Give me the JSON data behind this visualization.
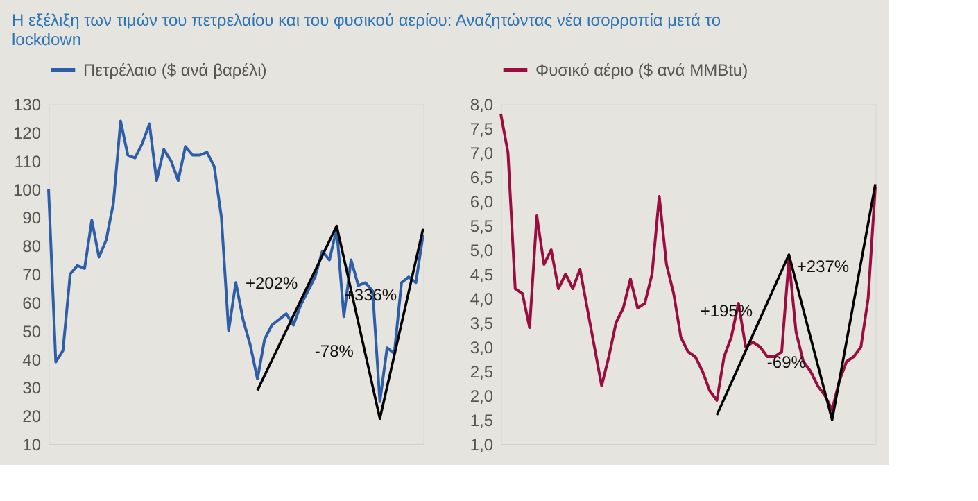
{
  "chart_data": [
    {
      "type": "line",
      "title": "Η εξέλιξη των τιμών του πετρελαίου και του φυσικού αερίου: Αναζητώντας νέα ισορροπία μετά το lockdown",
      "categories": [
        null,
        null,
        null,
        null,
        null,
        null,
        null,
        null,
        null,
        null,
        null,
        null,
        null,
        null,
        null,
        null,
        null,
        null,
        null,
        null,
        null,
        null,
        null,
        null,
        null,
        null,
        null,
        null,
        null,
        null,
        null,
        null,
        null,
        null,
        null,
        null,
        null,
        null,
        null,
        null,
        null,
        null,
        null,
        null,
        null,
        null,
        null,
        null,
        null,
        null,
        null,
        null,
        null
      ],
      "ylim": [
        10,
        130
      ],
      "yticks": [
        10,
        20,
        30,
        40,
        50,
        60,
        70,
        80,
        90,
        100,
        110,
        120,
        130
      ],
      "legend": "top",
      "marker": "none",
      "line_style": "solid",
      "series": [
        {
          "name": "Πετρέλαιο ($ ανά βαρέλι)",
          "color": "#2e5ea8",
          "values": [
            100,
            39,
            43,
            70,
            73,
            72,
            89,
            76,
            82,
            95,
            124,
            112,
            111,
            116,
            123,
            103,
            114,
            110,
            103,
            115,
            112,
            112,
            113,
            108,
            90,
            50,
            67,
            54,
            45,
            33,
            47,
            52,
            54,
            56,
            52,
            59,
            64,
            69,
            78,
            75,
            86,
            55,
            75,
            66,
            67,
            64,
            25,
            44,
            42,
            67,
            69,
            67,
            84
          ]
        },
        {
          "type": "line",
          "color": "#000000",
          "values": [
            null,
            null,
            null,
            null,
            null,
            null,
            null,
            null,
            null,
            null,
            null,
            null,
            null,
            null,
            null,
            null,
            null,
            null,
            null,
            null,
            null,
            null,
            null,
            null,
            null,
            null,
            null,
            null,
            null,
            29,
            null,
            null,
            null,
            null,
            null,
            null,
            null,
            null,
            null,
            null,
            87,
            null,
            null,
            null,
            null,
            null,
            19,
            null,
            null,
            null,
            null,
            null,
            86
          ]
        }
      ],
      "annotations": [
        "+202%",
        "-78%",
        "+336%"
      ]
    },
    {
      "type": "line",
      "categories": [
        null,
        null,
        null,
        null,
        null,
        null,
        null,
        null,
        null,
        null,
        null,
        null,
        null,
        null,
        null,
        null,
        null,
        null,
        null,
        null,
        null,
        null,
        null,
        null,
        null,
        null,
        null,
        null,
        null,
        null,
        null,
        null,
        null,
        null,
        null,
        null,
        null,
        null,
        null,
        null,
        null,
        null,
        null,
        null,
        null,
        null,
        null,
        null,
        null,
        null,
        null,
        null,
        null
      ],
      "ylim": [
        1.0,
        8.0
      ],
      "yticks": [
        {
          "value": 1.0,
          "label": "1,0"
        },
        {
          "value": 1.5,
          "label": "1,5"
        },
        {
          "value": 2.0,
          "label": "2,0"
        },
        {
          "value": 2.5,
          "label": "2,5"
        },
        {
          "value": 3.0,
          "label": "3,0"
        },
        {
          "value": 3.5,
          "label": "3,5"
        },
        {
          "value": 4.0,
          "label": "4,0"
        },
        {
          "value": 4.5,
          "label": "4,5"
        },
        {
          "value": 5.0,
          "label": "5,0"
        },
        {
          "value": 5.5,
          "label": "5,5"
        },
        {
          "value": 6.0,
          "label": "6,0"
        },
        {
          "value": 6.5,
          "label": "6,5"
        },
        {
          "value": 7.0,
          "label": "7,0"
        },
        {
          "value": 7.5,
          "label": "7,5"
        },
        {
          "value": 8.0,
          "label": "8,0"
        }
      ],
      "legend": "top",
      "marker": "none",
      "line_style": "solid",
      "series": [
        {
          "name": "Φυσικό αέριο ($ ανά MMBtu)",
          "color": "#9b0d3f",
          "values": [
            7.8,
            7.0,
            4.2,
            4.1,
            3.4,
            5.7,
            4.7,
            5.0,
            4.2,
            4.5,
            4.2,
            4.6,
            3.8,
            3.0,
            2.2,
            2.8,
            3.5,
            3.8,
            4.4,
            3.8,
            3.9,
            4.5,
            6.1,
            4.7,
            4.1,
            3.2,
            2.9,
            2.8,
            2.5,
            2.1,
            1.9,
            2.8,
            3.2,
            3.9,
            3.0,
            3.1,
            3.0,
            2.8,
            2.8,
            2.9,
            4.8,
            3.3,
            2.7,
            2.5,
            2.2,
            2.0,
            1.7,
            2.3,
            2.7,
            2.8,
            3.0,
            4.0,
            6.3
          ]
        },
        {
          "type": "line",
          "color": "#000000",
          "values": [
            null,
            null,
            null,
            null,
            null,
            null,
            null,
            null,
            null,
            null,
            null,
            null,
            null,
            null,
            null,
            null,
            null,
            null,
            null,
            null,
            null,
            null,
            null,
            null,
            null,
            null,
            null,
            null,
            null,
            null,
            1.6,
            null,
            null,
            null,
            null,
            null,
            null,
            null,
            null,
            null,
            4.9,
            null,
            null,
            null,
            null,
            null,
            1.5,
            null,
            null,
            null,
            null,
            null,
            6.35
          ]
        }
      ],
      "annotations": [
        "+195%",
        "-69%",
        "+237%"
      ]
    }
  ]
}
